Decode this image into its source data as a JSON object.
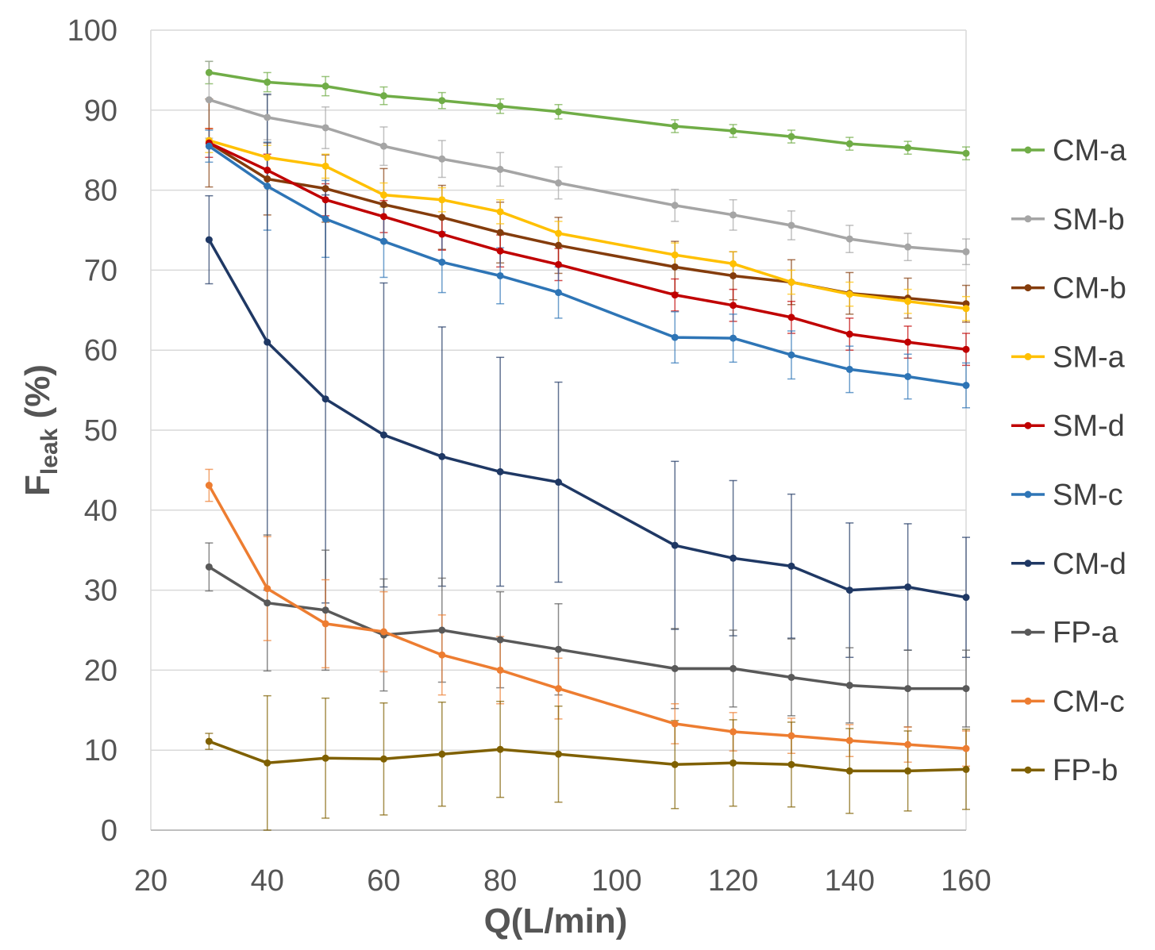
{
  "chart_data": {
    "type": "line",
    "xlabel": "Q(L/min)",
    "ylabel_main": "F",
    "ylabel_sub": "leak",
    "ylabel_suffix": " (%)",
    "xlim": [
      20,
      160
    ],
    "ylim": [
      0,
      100
    ],
    "xticks": [
      20,
      40,
      60,
      80,
      100,
      120,
      140,
      160
    ],
    "yticks": [
      0,
      10,
      20,
      30,
      40,
      50,
      60,
      70,
      80,
      90,
      100
    ],
    "grid": true,
    "legend_position": "right",
    "x": [
      30,
      40,
      50,
      60,
      70,
      80,
      90,
      110,
      120,
      130,
      140,
      150,
      160
    ],
    "series": [
      {
        "name": "CM-a",
        "color": "#70ad47",
        "values": [
          94.7,
          93.5,
          93.0,
          91.8,
          91.2,
          90.5,
          89.8,
          88.0,
          87.4,
          86.7,
          85.8,
          85.3,
          84.6
        ],
        "errors": [
          1.4,
          1.2,
          1.2,
          1.1,
          1.0,
          0.9,
          0.9,
          0.8,
          0.8,
          0.8,
          0.8,
          0.8,
          0.8
        ]
      },
      {
        "name": "SM-b",
        "color": "#a5a5a5",
        "values": [
          91.3,
          89.1,
          87.8,
          85.5,
          83.9,
          82.6,
          80.9,
          78.1,
          76.9,
          75.6,
          73.9,
          72.9,
          72.3
        ],
        "errors": [
          4.8,
          2.8,
          2.6,
          2.4,
          2.3,
          2.1,
          2.0,
          2.0,
          1.9,
          1.8,
          1.7,
          1.7,
          1.6
        ]
      },
      {
        "name": "CM-b",
        "color": "#843c0c",
        "values": [
          85.9,
          81.4,
          80.2,
          78.2,
          76.6,
          74.7,
          73.1,
          70.4,
          69.3,
          68.5,
          67.1,
          66.5,
          65.8
        ],
        "errors": [
          5.5,
          4.5,
          4.2,
          4.5,
          4.0,
          3.8,
          3.5,
          3.2,
          3.0,
          2.8,
          2.6,
          2.5,
          2.3
        ]
      },
      {
        "name": "SM-a",
        "color": "#ffc000",
        "values": [
          86.2,
          84.1,
          83.0,
          79.4,
          78.8,
          77.3,
          74.6,
          71.9,
          70.8,
          68.5,
          67.0,
          66.1,
          65.2
        ],
        "errors": [
          1.5,
          1.5,
          1.5,
          1.5,
          1.5,
          1.5,
          1.5,
          1.5,
          1.5,
          1.5,
          1.5,
          1.5,
          1.5
        ]
      },
      {
        "name": "SM-d",
        "color": "#c00000",
        "values": [
          85.9,
          82.5,
          78.8,
          76.7,
          74.5,
          72.4,
          70.7,
          66.9,
          65.6,
          64.1,
          62.0,
          61.0,
          60.1
        ],
        "errors": [
          1.8,
          2.0,
          2.0,
          2.0,
          2.0,
          2.0,
          2.0,
          2.0,
          2.0,
          2.0,
          2.0,
          2.0,
          2.0
        ]
      },
      {
        "name": "SM-c",
        "color": "#2e75b6",
        "values": [
          85.5,
          80.5,
          76.4,
          73.6,
          71.0,
          69.3,
          67.2,
          61.6,
          61.5,
          59.4,
          57.6,
          56.7,
          55.6
        ],
        "errors": [
          2.0,
          5.5,
          4.8,
          4.5,
          3.8,
          3.5,
          3.2,
          3.2,
          3.0,
          3.0,
          2.9,
          2.8,
          2.8
        ]
      },
      {
        "name": "CM-d",
        "color": "#1f3864",
        "values": [
          73.8,
          61.0,
          53.9,
          49.4,
          46.7,
          44.8,
          43.5,
          35.6,
          34.0,
          33.0,
          30.0,
          30.4,
          29.1
        ],
        "errors": [
          5.5,
          31.0,
          25.5,
          19.0,
          16.2,
          14.3,
          12.5,
          10.5,
          9.7,
          9.0,
          8.4,
          7.9,
          7.5
        ]
      },
      {
        "name": "FP-a",
        "color": "#595959",
        "values": [
          32.9,
          28.4,
          27.5,
          24.4,
          25.0,
          23.8,
          22.6,
          20.2,
          20.2,
          19.1,
          18.1,
          17.7,
          17.7
        ],
        "errors": [
          3.0,
          8.5,
          7.5,
          7.0,
          6.5,
          6.0,
          5.7,
          5.0,
          4.8,
          4.8,
          4.7,
          4.8,
          4.8
        ]
      },
      {
        "name": "CM-c",
        "color": "#ed7d31",
        "values": [
          43.1,
          30.2,
          25.8,
          24.8,
          21.9,
          20.0,
          17.7,
          13.3,
          12.3,
          11.8,
          11.2,
          10.7,
          10.2
        ],
        "errors": [
          2.0,
          6.5,
          5.5,
          5.0,
          5.0,
          4.2,
          3.8,
          2.5,
          2.4,
          2.2,
          2.0,
          2.2,
          2.2
        ]
      },
      {
        "name": "FP-b",
        "color": "#7f6000",
        "values": [
          11.1,
          8.4,
          9.0,
          8.9,
          9.5,
          10.1,
          9.5,
          8.2,
          8.4,
          8.2,
          7.4,
          7.4,
          7.6
        ],
        "errors": [
          1.0,
          8.4,
          7.5,
          7.0,
          6.5,
          6.0,
          6.0,
          5.5,
          5.4,
          5.3,
          5.3,
          5.0,
          5.0
        ]
      }
    ]
  }
}
